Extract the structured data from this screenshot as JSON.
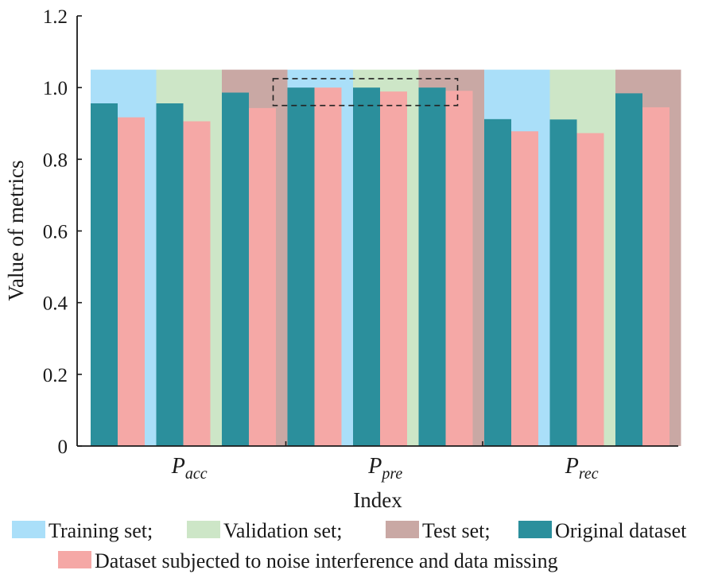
{
  "chart_data": {
    "type": "bar",
    "xlabel": "Index",
    "ylabel": "Value of metrics",
    "ylim": [
      0,
      1.2
    ],
    "yticks": [
      "0",
      "0.2",
      "0.4",
      "0.6",
      "0.8",
      "1.0",
      "1.2"
    ],
    "categories": [
      {
        "main": "P",
        "sub": "acc"
      },
      {
        "main": "P",
        "sub": "pre"
      },
      {
        "main": "P",
        "sub": "rec"
      }
    ],
    "splits": [
      "Training set",
      "Validation set",
      "Test set"
    ],
    "background_level": 1.05,
    "series": [
      {
        "name": "Original dataset",
        "values": [
          [
            0.956,
            0.956,
            0.986
          ],
          [
            1.0,
            1.0,
            1.0
          ],
          [
            0.912,
            0.911,
            0.984
          ]
        ]
      },
      {
        "name": "Dataset subjected to noise interference and data missing",
        "values": [
          [
            0.917,
            0.906,
            0.943
          ],
          [
            1.0,
            0.989,
            0.991
          ],
          [
            0.878,
            0.873,
            0.945
          ]
        ]
      }
    ],
    "highlight": {
      "from": 0.95,
      "to": 1.025,
      "category_index": 1
    },
    "legend": {
      "placement": "bottom",
      "row1": [
        "Training set;",
        "Validation set;",
        "Test set;",
        "Original dataset"
      ],
      "row2": [
        "Dataset subjected to noise interference and data missing"
      ]
    },
    "colors": {
      "training_bg": "#aadff9",
      "validation_bg": "#cde6c7",
      "test_bg": "#c9a8a4",
      "original": "#2b8f9c",
      "noisy": "#f5a8a6",
      "axis": "#1a1a1a"
    }
  }
}
